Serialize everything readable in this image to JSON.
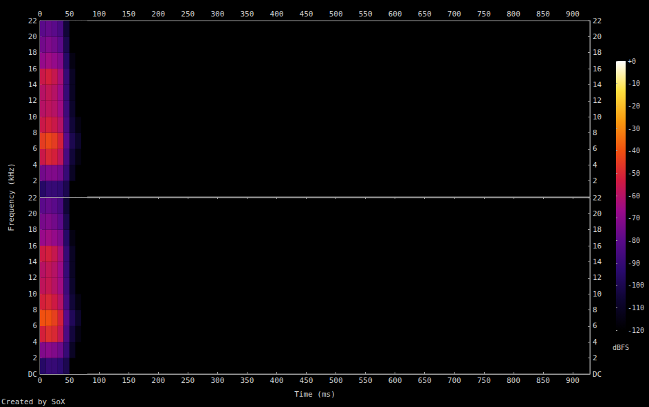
{
  "chart_data": {
    "type": "heatmap",
    "x_label": "Time (ms)",
    "y_label": "Frequency (kHz)",
    "credit": "Created by SoX",
    "xlim": [
      0,
      929
    ],
    "xticks": [
      0,
      50,
      100,
      150,
      200,
      250,
      300,
      350,
      400,
      450,
      500,
      550,
      600,
      650,
      700,
      750,
      800,
      850,
      900
    ],
    "colorbar": {
      "label": "dBFS",
      "range": [
        -120,
        0
      ],
      "ticks": [
        {
          "value": 0,
          "label": "+0"
        },
        -10,
        -20,
        -30,
        -40,
        -50,
        -60,
        -70,
        -80,
        -90,
        -100,
        -110,
        -120
      ]
    },
    "panels": [
      {
        "ylim": [
          0,
          22
        ],
        "yticks": [
          2,
          4,
          6,
          8,
          10,
          12,
          14,
          16,
          18,
          20,
          22
        ],
        "time_bins": [
          0,
          10,
          20,
          30,
          40,
          50,
          60,
          70,
          80
        ],
        "freq_bins": [
          0,
          2,
          4,
          6,
          8,
          10,
          12,
          14,
          16,
          18,
          20,
          22
        ],
        "cells": [
          [
            -95,
            -90,
            -90,
            -92,
            -100,
            -120,
            -120,
            -120
          ],
          [
            -75,
            -72,
            -72,
            -75,
            -90,
            -110,
            -120,
            -120
          ],
          [
            -55,
            -50,
            -52,
            -58,
            -85,
            -105,
            -115,
            -120
          ],
          [
            -45,
            -42,
            -45,
            -52,
            -80,
            -100,
            -108,
            -120
          ],
          [
            -55,
            -52,
            -55,
            -60,
            -85,
            -105,
            -115,
            -120
          ],
          [
            -60,
            -58,
            -60,
            -65,
            -88,
            -108,
            -120,
            -120
          ],
          [
            -60,
            -57,
            -60,
            -66,
            -90,
            -110,
            -120,
            -120
          ],
          [
            -55,
            -52,
            -56,
            -63,
            -90,
            -110,
            -120,
            -120
          ],
          [
            -68,
            -65,
            -68,
            -72,
            -95,
            -115,
            -120,
            -120
          ],
          [
            -75,
            -72,
            -75,
            -80,
            -100,
            -120,
            -120,
            -120
          ],
          [
            -80,
            -78,
            -80,
            -85,
            -105,
            -120,
            -120,
            -120
          ]
        ]
      },
      {
        "ylim": [
          0,
          22
        ],
        "yticks": [
          {
            "value": 0,
            "label": "DC"
          },
          2,
          4,
          6,
          8,
          10,
          12,
          14,
          16,
          18,
          20,
          22
        ],
        "time_bins": [
          0,
          10,
          20,
          30,
          40,
          50,
          60,
          70,
          80
        ],
        "freq_bins": [
          0,
          2,
          4,
          6,
          8,
          10,
          12,
          14,
          16,
          18,
          20,
          22
        ],
        "cells": [
          [
            -95,
            -90,
            -90,
            -93,
            -100,
            -120,
            -120,
            -120
          ],
          [
            -72,
            -70,
            -72,
            -76,
            -90,
            -110,
            -120,
            -120
          ],
          [
            -52,
            -48,
            -50,
            -57,
            -84,
            -104,
            -115,
            -120
          ],
          [
            -40,
            -40,
            -44,
            -52,
            -80,
            -98,
            -108,
            -120
          ],
          [
            -52,
            -50,
            -54,
            -60,
            -85,
            -105,
            -115,
            -120
          ],
          [
            -58,
            -56,
            -60,
            -65,
            -88,
            -108,
            -120,
            -120
          ],
          [
            -60,
            -57,
            -60,
            -66,
            -90,
            -110,
            -120,
            -120
          ],
          [
            -54,
            -52,
            -56,
            -63,
            -90,
            -110,
            -120,
            -120
          ],
          [
            -67,
            -65,
            -68,
            -72,
            -95,
            -115,
            -120,
            -120
          ],
          [
            -74,
            -72,
            -75,
            -80,
            -100,
            -120,
            -120,
            -120
          ],
          [
            -80,
            -78,
            -80,
            -85,
            -105,
            -120,
            -120,
            -120
          ]
        ]
      }
    ]
  }
}
